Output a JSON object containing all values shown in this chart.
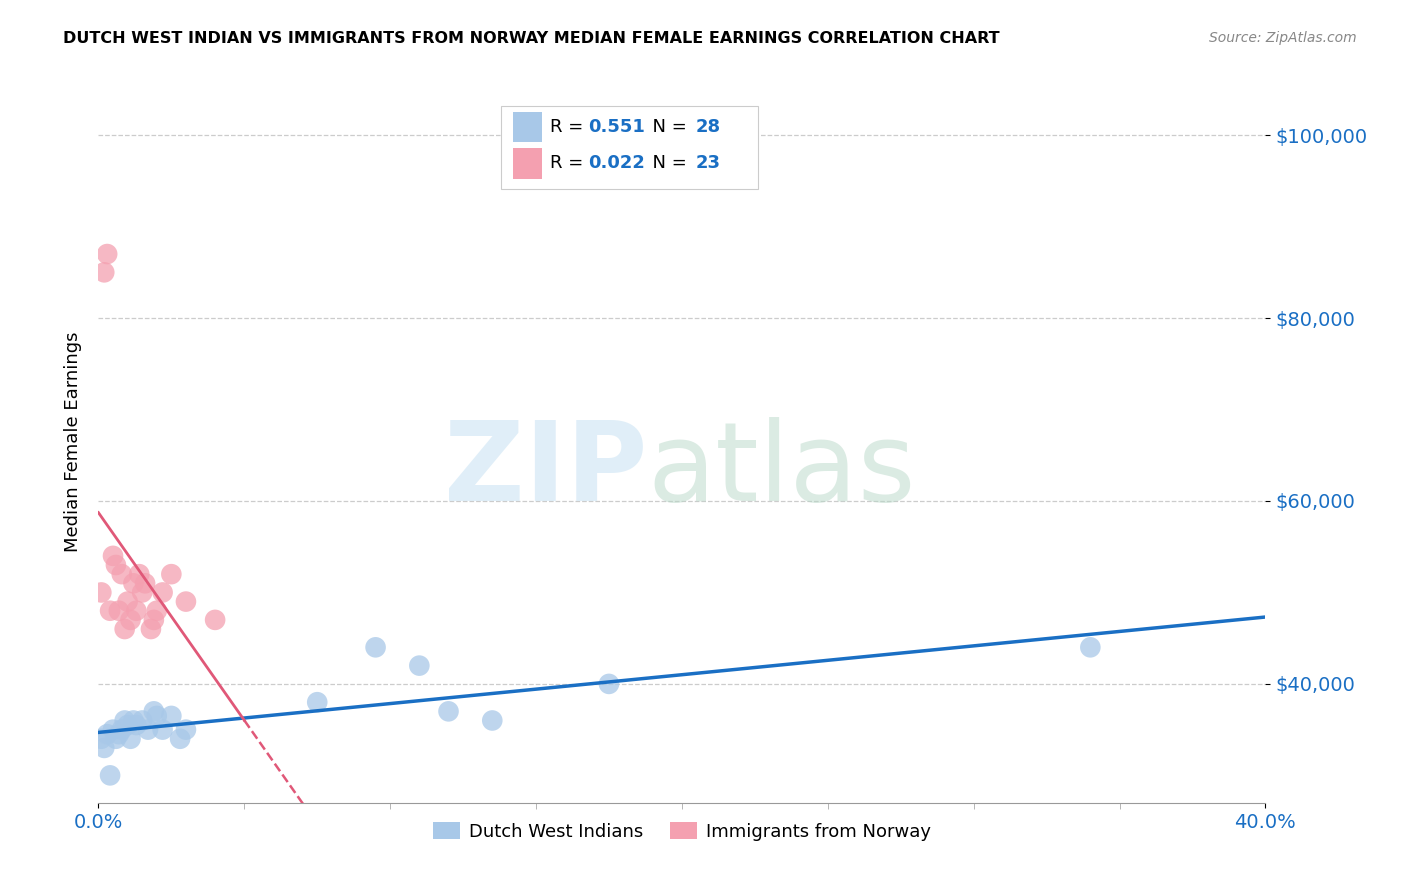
{
  "title": "DUTCH WEST INDIAN VS IMMIGRANTS FROM NORWAY MEDIAN FEMALE EARNINGS CORRELATION CHART",
  "source": "Source: ZipAtlas.com",
  "ylabel": "Median Female Earnings",
  "y_ticks": [
    40000,
    60000,
    80000,
    100000
  ],
  "y_tick_labels": [
    "$40,000",
    "$60,000",
    "$80,000",
    "$100,000"
  ],
  "xlim": [
    0.0,
    0.4
  ],
  "ylim": [
    27000,
    106000
  ],
  "legend_labels": [
    "Dutch West Indians",
    "Immigrants from Norway"
  ],
  "R_blue": "0.551",
  "N_blue": "28",
  "R_pink": "0.022",
  "N_pink": "23",
  "color_blue": "#a8c8e8",
  "color_pink": "#f4a0b0",
  "color_blue_line": "#1a6fc4",
  "color_pink_line": "#e05878",
  "blue_x": [
    0.001,
    0.002,
    0.003,
    0.004,
    0.005,
    0.006,
    0.007,
    0.008,
    0.009,
    0.01,
    0.011,
    0.012,
    0.013,
    0.015,
    0.017,
    0.019,
    0.02,
    0.022,
    0.025,
    0.028,
    0.03,
    0.075,
    0.095,
    0.11,
    0.12,
    0.135,
    0.175,
    0.34
  ],
  "blue_y": [
    34000,
    33000,
    34500,
    30000,
    35000,
    34000,
    34500,
    35000,
    36000,
    35500,
    34000,
    36000,
    35500,
    36000,
    35000,
    37000,
    36500,
    35000,
    36500,
    34000,
    35000,
    38000,
    44000,
    42000,
    37000,
    36000,
    40000,
    44000
  ],
  "pink_x": [
    0.001,
    0.002,
    0.003,
    0.004,
    0.005,
    0.006,
    0.007,
    0.008,
    0.009,
    0.01,
    0.011,
    0.012,
    0.013,
    0.014,
    0.015,
    0.016,
    0.018,
    0.019,
    0.02,
    0.022,
    0.025,
    0.03,
    0.04
  ],
  "pink_y": [
    50000,
    85000,
    87000,
    48000,
    54000,
    53000,
    48000,
    52000,
    46000,
    49000,
    47000,
    51000,
    48000,
    52000,
    50000,
    51000,
    46000,
    47000,
    48000,
    50000,
    52000,
    49000,
    47000
  ]
}
